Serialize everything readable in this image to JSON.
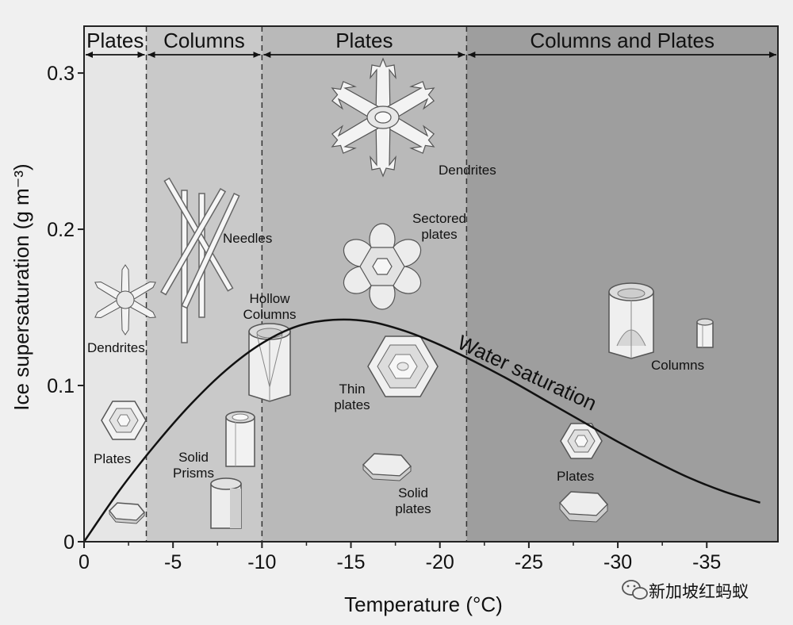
{
  "chart_data": {
    "type": "line",
    "xlabel": "Temperature (°C)",
    "ylabel": "Ice supersaturation (g m⁻³)",
    "x_ticks": [
      "0",
      "-5",
      "-10",
      "-15",
      "-20",
      "-25",
      "-30",
      "-35"
    ],
    "y_ticks": [
      "0",
      "0.1",
      "0.2",
      "0.3"
    ],
    "xlim": [
      0,
      -39
    ],
    "ylim": [
      0,
      0.33
    ],
    "regions": [
      {
        "label": "Plates",
        "from": 0,
        "to": -3.5,
        "shade": "#e6e6e6"
      },
      {
        "label": "Columns",
        "from": -3.5,
        "to": -10,
        "shade": "#c9c9c9"
      },
      {
        "label": "Plates",
        "from": -10,
        "to": -21.5,
        "shade": "#b9b9b9"
      },
      {
        "label": "Columns and Plates",
        "from": -21.5,
        "to": -39,
        "shade": "#9e9e9e"
      }
    ],
    "series": [
      {
        "name": "Water saturation",
        "x": [
          0,
          -2,
          -4,
          -6,
          -8,
          -10,
          -12,
          -14,
          -16,
          -18,
          -20,
          -22,
          -24,
          -26,
          -28,
          -30,
          -32,
          -34,
          -36,
          -38
        ],
        "y": [
          0,
          0.033,
          0.062,
          0.088,
          0.11,
          0.127,
          0.138,
          0.142,
          0.141,
          0.135,
          0.126,
          0.115,
          0.103,
          0.09,
          0.077,
          0.064,
          0.052,
          0.041,
          0.032,
          0.025
        ]
      }
    ],
    "crystal_labels": [
      "Dendrites",
      "Plates",
      "Needles",
      "Hollow Columns",
      "Solid Prisms",
      "Dendrites",
      "Sectored plates",
      "Thin plates",
      "Solid plates",
      "Columns",
      "Plates"
    ]
  },
  "watermark": "新加坡红蚂蚁",
  "colors": {
    "curve": "#111111",
    "frame": "#222222",
    "crystal_fill": "#f4f4f4",
    "crystal_stroke": "#555555"
  }
}
